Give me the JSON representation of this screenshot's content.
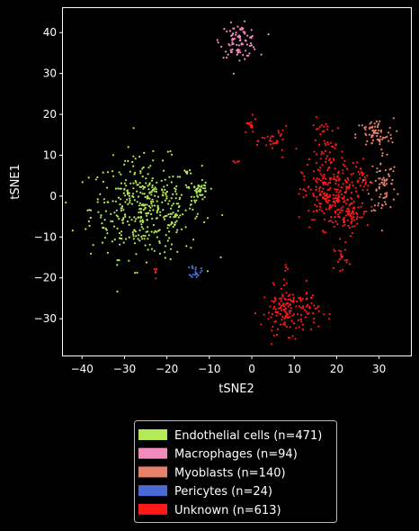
{
  "chart_data": {
    "type": "scatter",
    "title": "",
    "xlabel": "tSNE2",
    "ylabel": "tSNE1",
    "xlim": [
      -44.5,
      37.5
    ],
    "ylim": [
      -39,
      46
    ],
    "xticks": [
      -40,
      -30,
      -20,
      -10,
      0,
      10,
      20,
      30
    ],
    "yticks": [
      -30,
      -20,
      -10,
      0,
      10,
      20,
      30,
      40
    ],
    "grid": false,
    "legend_position": "bottom-center",
    "series": [
      {
        "name": "Endothelial cells (n=471)",
        "color": "#b3ea58",
        "clusters": [
          {
            "cx": -25,
            "cy": -3,
            "sx": 6.5,
            "sy": 6.0,
            "n": 430
          },
          {
            "cx": -12,
            "cy": 1,
            "sx": 1.0,
            "sy": 1.2,
            "n": 41
          }
        ]
      },
      {
        "name": "Macrophages (n=94)",
        "color": "#f08bbd",
        "clusters": [
          {
            "cx": -3,
            "cy": 38,
            "sx": 2.2,
            "sy": 2.0,
            "n": 94
          }
        ]
      },
      {
        "name": "Myoblasts (n=140)",
        "color": "#e8806a",
        "clusters": [
          {
            "cx": 29,
            "cy": 15,
            "sx": 2.2,
            "sy": 2.0,
            "n": 70
          },
          {
            "cx": 31,
            "cy": 3,
            "sx": 1.6,
            "sy": 4.0,
            "n": 70
          }
        ]
      },
      {
        "name": "Pericytes (n=24)",
        "color": "#4a6bd4",
        "clusters": [
          {
            "cx": -13.2,
            "cy": -18.3,
            "sx": 0.6,
            "sy": 0.8,
            "n": 24
          }
        ]
      },
      {
        "name": "Unknown (n=613)",
        "color": "#ff1a1a",
        "clusters": [
          {
            "cx": 19,
            "cy": 0,
            "sx": 3.5,
            "sy": 4.0,
            "n": 240
          },
          {
            "cx": 23,
            "cy": -5,
            "sx": 2.0,
            "sy": 2.0,
            "n": 50
          },
          {
            "cx": 18,
            "cy": 11,
            "sx": 2.0,
            "sy": 4.0,
            "n": 60
          },
          {
            "cx": 21,
            "cy": -15,
            "sx": 0.8,
            "sy": 1.5,
            "n": 18
          },
          {
            "cx": 9,
            "cy": -28,
            "sx": 3.4,
            "sy": 2.8,
            "n": 165
          },
          {
            "cx": 5.5,
            "cy": 13.5,
            "sx": 1.6,
            "sy": 1.6,
            "n": 30
          },
          {
            "cx": -0.5,
            "cy": 17,
            "sx": 0.8,
            "sy": 1.0,
            "n": 16
          },
          {
            "cx": -4,
            "cy": 8.3,
            "sx": 0.6,
            "sy": 0.2,
            "n": 5
          },
          {
            "cx": -22.5,
            "cy": -18,
            "sx": 0.3,
            "sy": 1.0,
            "n": 5
          },
          {
            "cx": 8,
            "cy": -17.5,
            "sx": 0.3,
            "sy": 0.9,
            "n": 4
          },
          {
            "cx": 26,
            "cy": 4,
            "sx": 0.8,
            "sy": 2.0,
            "n": 20
          }
        ]
      }
    ]
  }
}
